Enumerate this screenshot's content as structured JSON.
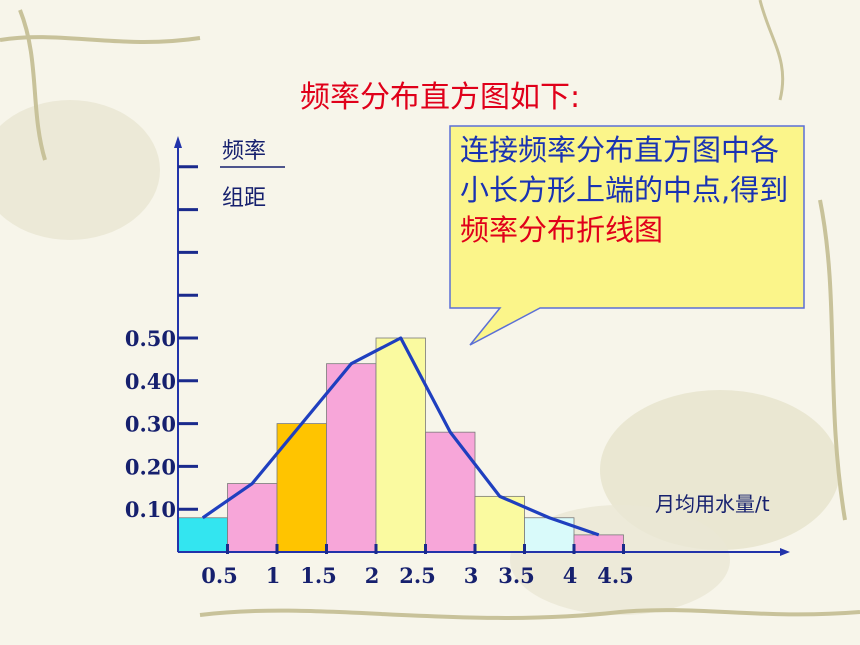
{
  "slide": {
    "title": "频率分布直方图如下:",
    "callout": {
      "text_part1": "连接频率分布直方图中各小长方形上端的中点,得到",
      "text_highlight": "频率分布折线图"
    }
  },
  "chart_data": {
    "type": "bar",
    "title": "",
    "ylabel_top": "频率",
    "ylabel_bottom": "组距",
    "xlabel": "月均用水量/t",
    "x_ticks": [
      "0.5",
      "1",
      "1.5",
      "2",
      "2.5",
      "3",
      "3.5",
      "4",
      "4.5"
    ],
    "y_ticks": [
      "0.10",
      "0.20",
      "0.30",
      "0.40",
      "0.50"
    ],
    "ylim": [
      0,
      0.9
    ],
    "xlim": [
      0,
      4.7
    ],
    "bins": [
      {
        "start": 0.0,
        "end": 0.5,
        "value": 0.08,
        "color": "#33e5f0"
      },
      {
        "start": 0.5,
        "end": 1.0,
        "value": 0.16,
        "color": "#f7a6d9"
      },
      {
        "start": 1.0,
        "end": 1.5,
        "value": 0.3,
        "color": "#ffc400"
      },
      {
        "start": 1.5,
        "end": 2.0,
        "value": 0.44,
        "color": "#f7a6d9"
      },
      {
        "start": 2.0,
        "end": 2.5,
        "value": 0.5,
        "color": "#fafaa0"
      },
      {
        "start": 2.5,
        "end": 3.0,
        "value": 0.28,
        "color": "#f7a6d9"
      },
      {
        "start": 3.0,
        "end": 3.5,
        "value": 0.13,
        "color": "#fafaa0"
      },
      {
        "start": 3.5,
        "end": 4.0,
        "value": 0.08,
        "color": "#d9fafa"
      },
      {
        "start": 4.0,
        "end": 4.5,
        "value": 0.04,
        "color": "#f7a6d9"
      }
    ],
    "polyline": {
      "x": [
        0.25,
        0.75,
        1.25,
        1.75,
        2.25,
        2.75,
        3.25,
        3.75,
        4.25
      ],
      "y": [
        0.08,
        0.16,
        0.3,
        0.44,
        0.5,
        0.28,
        0.13,
        0.08,
        0.04
      ],
      "color": "#1f3fbf"
    },
    "axis_color": "#2233aa",
    "grid": false
  }
}
